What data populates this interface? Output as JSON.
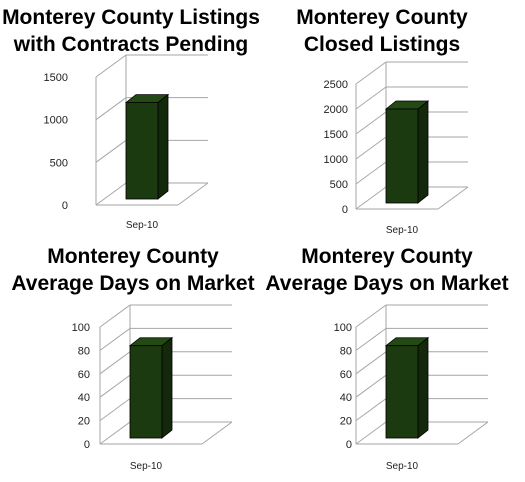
{
  "chart_data": [
    {
      "type": "bar",
      "title_lines": [
        "Monterey County Listings",
        "with Contracts Pending"
      ],
      "categories": [
        "Sep-10"
      ],
      "values": [
        1200
      ],
      "ylim": [
        0,
        1500
      ],
      "yticks": [
        0,
        500,
        1000,
        1500
      ],
      "grid": true,
      "legend": "none",
      "bar_color": "#1c3a10"
    },
    {
      "type": "bar",
      "title_lines": [
        "Monterey County",
        "Closed Listings"
      ],
      "categories": [
        "Sep-10"
      ],
      "values": [
        2000
      ],
      "ylim": [
        0,
        2500
      ],
      "yticks": [
        0,
        500,
        1000,
        1500,
        2000,
        2500
      ],
      "grid": true,
      "legend": "none",
      "bar_color": "#1c3a10"
    },
    {
      "type": "bar",
      "title_lines": [
        "Monterey County",
        "Average Days on Market"
      ],
      "categories": [
        "Sep-10"
      ],
      "values": [
        84
      ],
      "ylim": [
        0,
        100
      ],
      "yticks": [
        0,
        20,
        40,
        60,
        80,
        100
      ],
      "grid": true,
      "legend": "none",
      "bar_color": "#1c3a10"
    },
    {
      "type": "bar",
      "title_lines": [
        "Monterey County",
        "Average Days on Market"
      ],
      "categories": [
        "Sep-10"
      ],
      "values": [
        84
      ],
      "ylim": [
        0,
        100
      ],
      "yticks": [
        0,
        20,
        40,
        60,
        80,
        100
      ],
      "grid": true,
      "legend": "none",
      "bar_color": "#1c3a10"
    }
  ]
}
